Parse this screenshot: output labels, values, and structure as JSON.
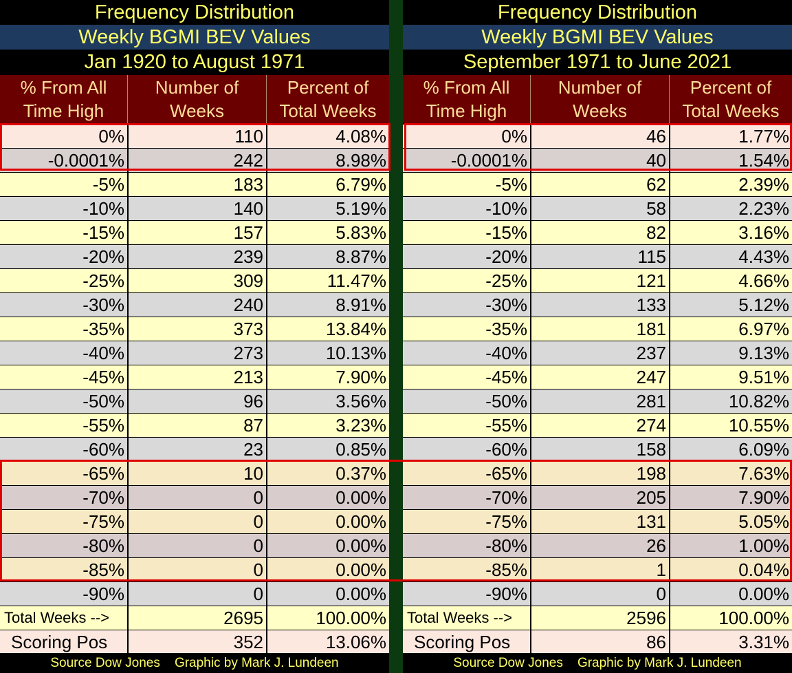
{
  "colors": {
    "title_text": "#ffff66",
    "title_band": "#1f3a5f",
    "header_bg": "#6b0000",
    "header_text": "#ffdd99",
    "divider": "#0c3a10",
    "highlight_box": "#e00000"
  },
  "headers": {
    "col1": "% From All Time High",
    "col2": "Number of Weeks",
    "col3": "Percent of Total Weeks"
  },
  "footer": "Source Dow Jones    Graphic by Mark J. Lundeen",
  "panels": [
    {
      "title1": "Frequency Distribution",
      "title2": "Weekly BGMI BEV Values",
      "title3": "Jan 1920 to August 1971",
      "rows": [
        {
          "pct": "0%",
          "weeks": "110",
          "share": "4.08%"
        },
        {
          "pct": "-0.0001%",
          "weeks": "242",
          "share": "8.98%"
        },
        {
          "pct": "-5%",
          "weeks": "183",
          "share": "6.79%"
        },
        {
          "pct": "-10%",
          "weeks": "140",
          "share": "5.19%"
        },
        {
          "pct": "-15%",
          "weeks": "157",
          "share": "5.83%"
        },
        {
          "pct": "-20%",
          "weeks": "239",
          "share": "8.87%"
        },
        {
          "pct": "-25%",
          "weeks": "309",
          "share": "11.47%"
        },
        {
          "pct": "-30%",
          "weeks": "240",
          "share": "8.91%"
        },
        {
          "pct": "-35%",
          "weeks": "373",
          "share": "13.84%"
        },
        {
          "pct": "-40%",
          "weeks": "273",
          "share": "10.13%"
        },
        {
          "pct": "-45%",
          "weeks": "213",
          "share": "7.90%"
        },
        {
          "pct": "-50%",
          "weeks": "96",
          "share": "3.56%"
        },
        {
          "pct": "-55%",
          "weeks": "87",
          "share": "3.23%"
        },
        {
          "pct": "-60%",
          "weeks": "23",
          "share": "0.85%"
        },
        {
          "pct": "-65%",
          "weeks": "10",
          "share": "0.37%"
        },
        {
          "pct": "-70%",
          "weeks": "0",
          "share": "0.00%"
        },
        {
          "pct": "-75%",
          "weeks": "0",
          "share": "0.00%"
        },
        {
          "pct": "-80%",
          "weeks": "0",
          "share": "0.00%"
        },
        {
          "pct": "-85%",
          "weeks": "0",
          "share": "0.00%"
        },
        {
          "pct": "-90%",
          "weeks": "0",
          "share": "0.00%"
        }
      ],
      "total": {
        "label": "Total Weeks -->",
        "weeks": "2695",
        "share": "100.00%"
      },
      "score": {
        "label": "Scoring  Pos",
        "weeks": "352",
        "share": "13.06%"
      }
    },
    {
      "title1": "Frequency Distribution",
      "title2": "Weekly BGMI BEV Values",
      "title3": "September 1971 to June 2021",
      "rows": [
        {
          "pct": "0%",
          "weeks": "46",
          "share": "1.77%"
        },
        {
          "pct": "-0.0001%",
          "weeks": "40",
          "share": "1.54%"
        },
        {
          "pct": "-5%",
          "weeks": "62",
          "share": "2.39%"
        },
        {
          "pct": "-10%",
          "weeks": "58",
          "share": "2.23%"
        },
        {
          "pct": "-15%",
          "weeks": "82",
          "share": "3.16%"
        },
        {
          "pct": "-20%",
          "weeks": "115",
          "share": "4.43%"
        },
        {
          "pct": "-25%",
          "weeks": "121",
          "share": "4.66%"
        },
        {
          "pct": "-30%",
          "weeks": "133",
          "share": "5.12%"
        },
        {
          "pct": "-35%",
          "weeks": "181",
          "share": "6.97%"
        },
        {
          "pct": "-40%",
          "weeks": "237",
          "share": "9.13%"
        },
        {
          "pct": "-45%",
          "weeks": "247",
          "share": "9.51%"
        },
        {
          "pct": "-50%",
          "weeks": "281",
          "share": "10.82%"
        },
        {
          "pct": "-55%",
          "weeks": "274",
          "share": "10.55%"
        },
        {
          "pct": "-60%",
          "weeks": "158",
          "share": "6.09%"
        },
        {
          "pct": "-65%",
          "weeks": "198",
          "share": "7.63%"
        },
        {
          "pct": "-70%",
          "weeks": "205",
          "share": "7.90%"
        },
        {
          "pct": "-75%",
          "weeks": "131",
          "share": "5.05%"
        },
        {
          "pct": "-80%",
          "weeks": "26",
          "share": "1.00%"
        },
        {
          "pct": "-85%",
          "weeks": "1",
          "share": "0.04%"
        },
        {
          "pct": "-90%",
          "weeks": "0",
          "share": "0.00%"
        }
      ],
      "total": {
        "label": "Total Weeks -->",
        "weeks": "2596",
        "share": "100.00%"
      },
      "score": {
        "label": "Scoring  Pos",
        "weeks": "86",
        "share": "3.31%"
      }
    }
  ]
}
